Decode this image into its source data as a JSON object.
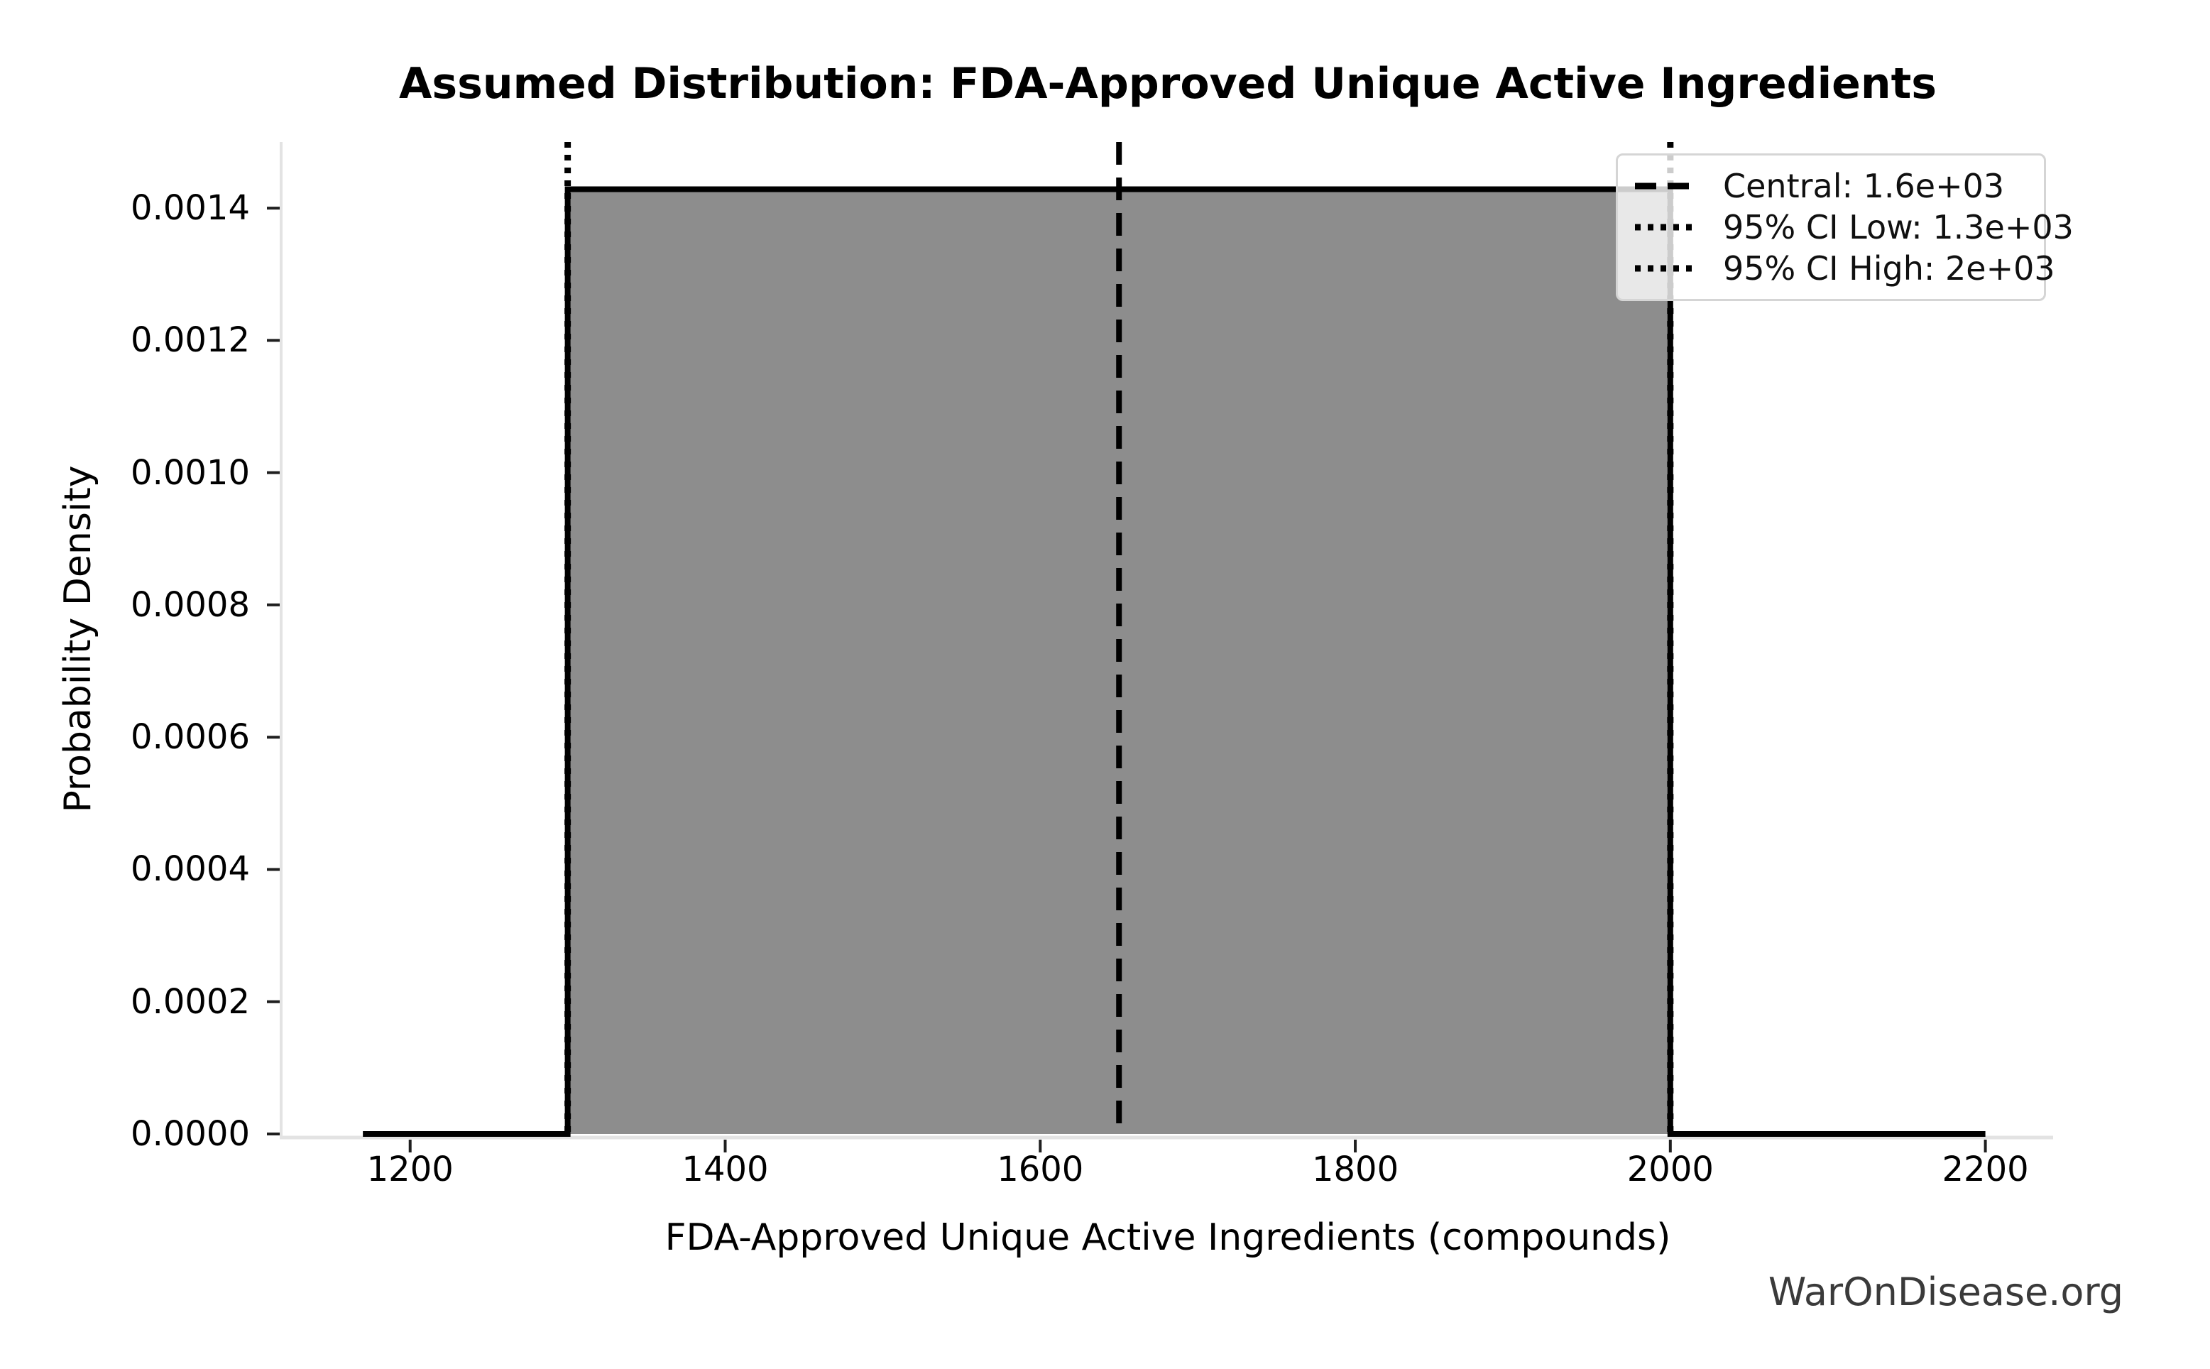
{
  "figure": {
    "watermark": "WarOnDisease.org"
  },
  "chart_data": {
    "type": "area",
    "title": "Assumed Distribution: FDA-Approved Unique Active Ingredients",
    "xlabel": "FDA-Approved Unique Active Ingredients (compounds)",
    "ylabel": "Probability Density",
    "distribution": "uniform",
    "support": [
      1300,
      2000
    ],
    "density": 0.0014285714,
    "central": 1650,
    "ci_low": 1300,
    "ci_high": 2000,
    "curve_x": [
      1170,
      1300,
      1300,
      2000,
      2000,
      2200
    ],
    "curve_y": [
      0,
      0,
      0.0014285714,
      0.0014285714,
      0,
      0
    ],
    "xlim": [
      1119,
      2243
    ],
    "ylim": [
      0,
      0.0015
    ],
    "grid": false,
    "x_tick_values": [
      1200,
      1400,
      1600,
      1800,
      2000,
      2200
    ],
    "x_tick_labels": [
      "1200",
      "1400",
      "1600",
      "1800",
      "2000",
      "2200"
    ],
    "y_tick_values": [
      0.0,
      0.0002,
      0.0004,
      0.0006,
      0.0008,
      0.001,
      0.0012,
      0.0014
    ],
    "y_tick_labels": [
      "0.0000",
      "0.0002",
      "0.0004",
      "0.0006",
      "0.0008",
      "0.0010",
      "0.0012",
      "0.0014"
    ],
    "legend": {
      "position": "upper right",
      "entries": [
        {
          "label": "Central: 1.6e+03",
          "style": "dashed"
        },
        {
          "label": "95% CI Low: 1.3e+03",
          "style": "dotted"
        },
        {
          "label": "95% CI High: 2e+03",
          "style": "dotted"
        }
      ]
    },
    "colors": {
      "fill": "#8d8d8d",
      "line": "#000000",
      "spine": "#e3e3e3",
      "tick": "#1f1f1f",
      "legend_border": "#d5d5d5",
      "watermark": "#3a3a3a"
    }
  }
}
